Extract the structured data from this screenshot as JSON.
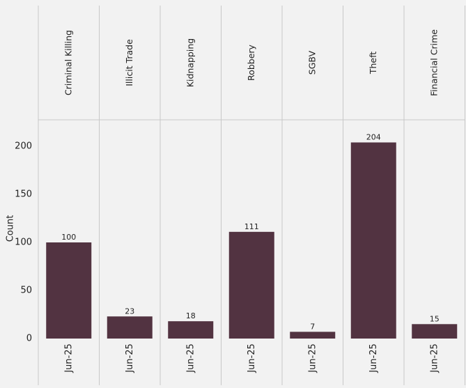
{
  "chart_data": {
    "type": "bar",
    "title": "",
    "xlabel": "",
    "ylabel": "Count",
    "ylim": [
      0,
      222
    ],
    "yticks": [
      0,
      50,
      100,
      150,
      200
    ],
    "grid": false,
    "bar_color": "#523341",
    "background_color": "#f2f2f2",
    "panel_border_color": "#c8c8c8",
    "facets": [
      "Criminal Killing",
      "Illicit Trade",
      "Kidnapping",
      "Robbery",
      "SGBV",
      "Theft",
      "Financial Crime"
    ],
    "series": [
      {
        "values": [
          {
            "facet": "Criminal Killing",
            "x": "Jun-25",
            "value": 100
          },
          {
            "facet": "Illicit Trade",
            "x": "Jun-25",
            "value": 23
          },
          {
            "facet": "Kidnapping",
            "x": "Jun-25",
            "value": 18
          },
          {
            "facet": "Robbery",
            "x": "Jun-25",
            "value": 111
          },
          {
            "facet": "SGBV",
            "x": "Jun-25",
            "value": 7
          },
          {
            "facet": "Theft",
            "x": "Jun-25",
            "value": 204
          },
          {
            "facet": "Financial Crime",
            "x": "Jun-25",
            "value": 15
          }
        ]
      }
    ]
  }
}
